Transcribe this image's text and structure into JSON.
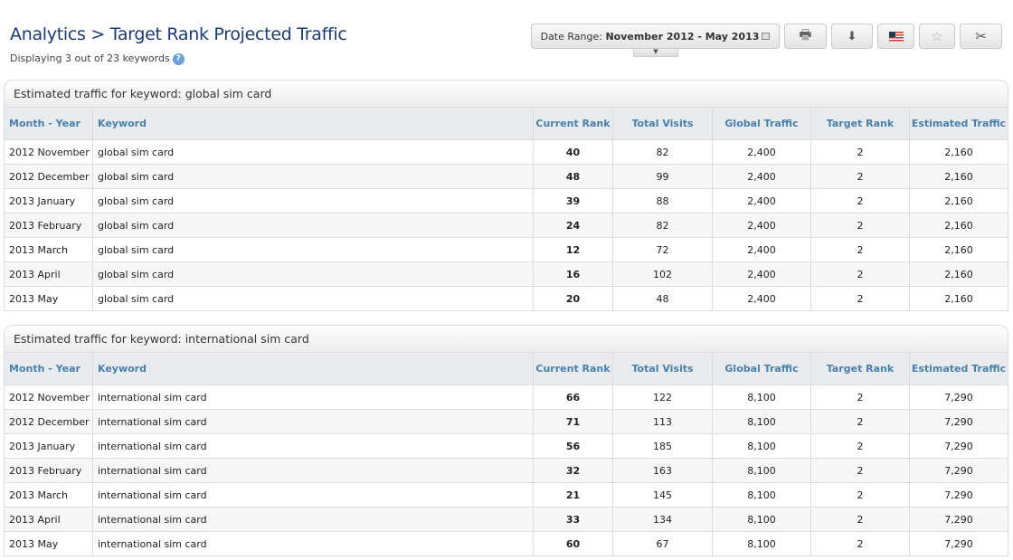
{
  "header": {
    "title": "Analytics > Target Rank Projected Traffic",
    "subtitle": "Displaying 3 out of 23 keywords",
    "help_icon": "?"
  },
  "toolbar": {
    "date_label": "Date Range:",
    "date_value": "November 2012 - May 2013",
    "buttons": [
      "print-icon",
      "export-icon",
      "us-flag-icon",
      "star-icon",
      "tools-icon"
    ]
  },
  "columns": [
    "Month - Year",
    "Keyword",
    "Current Rank",
    "Total Visits",
    "Global Traffic",
    "Target Rank",
    "Estimated Traffic"
  ],
  "tables": [
    {
      "title": "Estimated traffic for keyword: global sim card",
      "rows": [
        [
          "2012 November",
          "global sim card",
          "40",
          "82",
          "2,400",
          "2",
          "2,160"
        ],
        [
          "2012 December",
          "global sim card",
          "48",
          "99",
          "2,400",
          "2",
          "2,160"
        ],
        [
          "2013 January",
          "global sim card",
          "39",
          "88",
          "2,400",
          "2",
          "2,160"
        ],
        [
          "2013 February",
          "global sim card",
          "24",
          "82",
          "2,400",
          "2",
          "2,160"
        ],
        [
          "2013 March",
          "global sim card",
          "12",
          "72",
          "2,400",
          "2",
          "2,160"
        ],
        [
          "2013 April",
          "global sim card",
          "16",
          "102",
          "2,400",
          "2",
          "2,160"
        ],
        [
          "2013 May",
          "global sim card",
          "20",
          "48",
          "2,400",
          "2",
          "2,160"
        ]
      ]
    },
    {
      "title": "Estimated traffic for keyword: international sim card",
      "rows": [
        [
          "2012 November",
          "international sim card",
          "66",
          "122",
          "8,100",
          "2",
          "7,290"
        ],
        [
          "2012 December",
          "international sim card",
          "71",
          "113",
          "8,100",
          "2",
          "7,290"
        ],
        [
          "2013 January",
          "international sim card",
          "56",
          "185",
          "8,100",
          "2",
          "7,290"
        ],
        [
          "2013 February",
          "international sim card",
          "32",
          "163",
          "8,100",
          "2",
          "7,290"
        ],
        [
          "2013 March",
          "international sim card",
          "21",
          "145",
          "8,100",
          "2",
          "7,290"
        ],
        [
          "2013 April",
          "international sim card",
          "33",
          "134",
          "8,100",
          "2",
          "7,290"
        ],
        [
          "2013 May",
          "international sim card",
          "60",
          "67",
          "8,100",
          "2",
          "7,290"
        ]
      ]
    }
  ]
}
